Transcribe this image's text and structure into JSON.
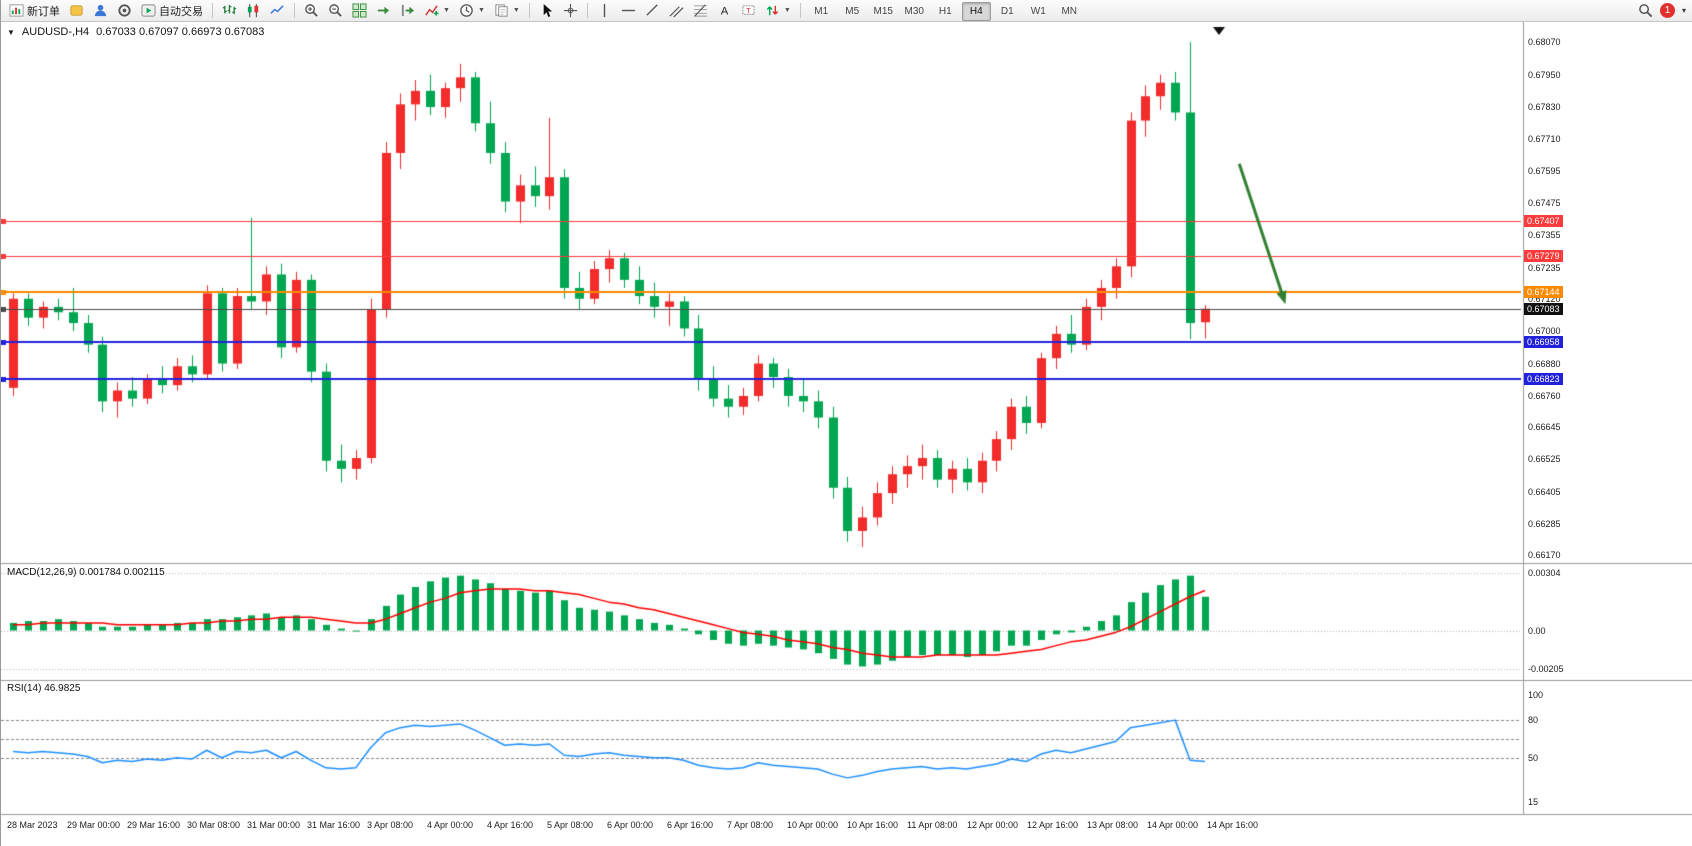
{
  "toolbar": {
    "new_order": "新订单",
    "auto_trading": "自动交易",
    "timeframes": [
      "M1",
      "M5",
      "M15",
      "M30",
      "H1",
      "H4",
      "D1",
      "W1",
      "MN"
    ],
    "active_timeframe": "H4",
    "notification_count": "1"
  },
  "chart_header": {
    "symbol": "AUDUSD-,H4",
    "ohlc": "0.67033 0.67097 0.66973 0.67083"
  },
  "indicators": {
    "macd_label": "MACD(12,26,9)",
    "macd_values": "0.001784 0.002115",
    "rsi_label": "RSI(14)",
    "rsi_value": "46.9825"
  },
  "chart_data": [
    {
      "type": "candlestick",
      "title": "AUDUSD-,H4",
      "symbol": "AUDUSD-",
      "timeframe": "H4",
      "ohlc_header": {
        "open": "0.67033",
        "high": "0.67097",
        "low": "0.66973",
        "close": "0.67083"
      },
      "bull_color": "#f22b2b",
      "bear_color": "#00a651",
      "ylim": [
        0.66145,
        0.68145
      ],
      "y_ticks": [
        0.6807,
        0.6795,
        0.6783,
        0.6771,
        0.67595,
        0.67475,
        0.67355,
        0.67235,
        0.6712,
        0.67,
        0.6688,
        0.6676,
        0.66645,
        0.66525,
        0.66405,
        0.66285,
        0.6617
      ],
      "x_labels": [
        "28 Mar 2023",
        "29 Mar 00:00",
        "29 Mar 16:00",
        "30 Mar 08:00",
        "31 Mar 00:00",
        "31 Mar 16:00",
        "3 Apr 08:00",
        "4 Apr 00:00",
        "4 Apr 16:00",
        "5 Apr 08:00",
        "6 Apr 00:00",
        "6 Apr 16:00",
        "7 Apr 08:00",
        "10 Apr 00:00",
        "10 Apr 16:00",
        "11 Apr 08:00",
        "12 Apr 00:00",
        "12 Apr 16:00",
        "13 Apr 08:00",
        "14 Apr 00:00",
        "14 Apr 16:00"
      ],
      "candles": [
        [
          0.6679,
          0.6714,
          0.6676,
          0.6712
        ],
        [
          0.6712,
          0.6714,
          0.6702,
          0.6705
        ],
        [
          0.6705,
          0.6711,
          0.6701,
          0.6709
        ],
        [
          0.6709,
          0.6712,
          0.6704,
          0.6707
        ],
        [
          0.6707,
          0.6716,
          0.67,
          0.6703
        ],
        [
          0.6703,
          0.6706,
          0.6692,
          0.6695
        ],
        [
          0.6695,
          0.6698,
          0.667,
          0.6674
        ],
        [
          0.6674,
          0.6681,
          0.6668,
          0.6678
        ],
        [
          0.6678,
          0.6683,
          0.6672,
          0.6675
        ],
        [
          0.6675,
          0.6684,
          0.6673,
          0.6682
        ],
        [
          0.6682,
          0.6687,
          0.6677,
          0.668
        ],
        [
          0.668,
          0.669,
          0.6678,
          0.6687
        ],
        [
          0.6687,
          0.6691,
          0.6681,
          0.6684
        ],
        [
          0.6684,
          0.6717,
          0.6682,
          0.6714
        ],
        [
          0.6714,
          0.6716,
          0.6685,
          0.6688
        ],
        [
          0.6688,
          0.6716,
          0.6686,
          0.6713
        ],
        [
          0.6713,
          0.6742,
          0.6708,
          0.6711
        ],
        [
          0.6711,
          0.6724,
          0.6706,
          0.6721
        ],
        [
          0.6721,
          0.6725,
          0.669,
          0.6694
        ],
        [
          0.6694,
          0.6722,
          0.6692,
          0.6719
        ],
        [
          0.6719,
          0.6721,
          0.6681,
          0.6685
        ],
        [
          0.6685,
          0.6688,
          0.6648,
          0.6652
        ],
        [
          0.6652,
          0.6658,
          0.6644,
          0.6649
        ],
        [
          0.6649,
          0.6656,
          0.6645,
          0.6653
        ],
        [
          0.6653,
          0.6712,
          0.6651,
          0.6708
        ],
        [
          0.6708,
          0.677,
          0.6705,
          0.6766
        ],
        [
          0.6766,
          0.6788,
          0.676,
          0.6784
        ],
        [
          0.6784,
          0.6793,
          0.6778,
          0.6789
        ],
        [
          0.6789,
          0.6795,
          0.678,
          0.6783
        ],
        [
          0.6783,
          0.6792,
          0.6779,
          0.679
        ],
        [
          0.679,
          0.6799,
          0.6785,
          0.6794
        ],
        [
          0.6794,
          0.6796,
          0.6774,
          0.6777
        ],
        [
          0.6777,
          0.6785,
          0.6762,
          0.6766
        ],
        [
          0.6766,
          0.677,
          0.6744,
          0.6748
        ],
        [
          0.6748,
          0.6758,
          0.674,
          0.6754
        ],
        [
          0.6754,
          0.6761,
          0.6746,
          0.675
        ],
        [
          0.675,
          0.6779,
          0.6745,
          0.6757
        ],
        [
          0.6757,
          0.676,
          0.6712,
          0.6716
        ],
        [
          0.6716,
          0.6722,
          0.6708,
          0.6712
        ],
        [
          0.6712,
          0.6726,
          0.671,
          0.6723
        ],
        [
          0.6723,
          0.673,
          0.6718,
          0.6727
        ],
        [
          0.6727,
          0.6729,
          0.6716,
          0.6719
        ],
        [
          0.6719,
          0.6724,
          0.671,
          0.6713
        ],
        [
          0.6713,
          0.6718,
          0.6705,
          0.6709
        ],
        [
          0.6709,
          0.6714,
          0.6702,
          0.6711
        ],
        [
          0.6711,
          0.6713,
          0.6698,
          0.6701
        ],
        [
          0.6701,
          0.6706,
          0.6678,
          0.6682
        ],
        [
          0.6682,
          0.6687,
          0.6672,
          0.6675
        ],
        [
          0.6675,
          0.668,
          0.6668,
          0.6672
        ],
        [
          0.6672,
          0.6679,
          0.6669,
          0.6676
        ],
        [
          0.6676,
          0.6691,
          0.6674,
          0.6688
        ],
        [
          0.6688,
          0.669,
          0.6679,
          0.6683
        ],
        [
          0.6683,
          0.6686,
          0.6672,
          0.6676
        ],
        [
          0.6676,
          0.6682,
          0.667,
          0.6674
        ],
        [
          0.6674,
          0.6678,
          0.6664,
          0.6668
        ],
        [
          0.6668,
          0.6672,
          0.6638,
          0.6642
        ],
        [
          0.6642,
          0.6646,
          0.6622,
          0.6626
        ],
        [
          0.6626,
          0.6635,
          0.662,
          0.6631
        ],
        [
          0.6631,
          0.6644,
          0.6628,
          0.664
        ],
        [
          0.664,
          0.665,
          0.6636,
          0.6647
        ],
        [
          0.6647,
          0.6654,
          0.6642,
          0.665
        ],
        [
          0.665,
          0.6658,
          0.6645,
          0.6653
        ],
        [
          0.6653,
          0.6656,
          0.6642,
          0.6645
        ],
        [
          0.6645,
          0.6652,
          0.664,
          0.6649
        ],
        [
          0.6649,
          0.6653,
          0.6641,
          0.6644
        ],
        [
          0.6644,
          0.6655,
          0.664,
          0.6652
        ],
        [
          0.6652,
          0.6663,
          0.6648,
          0.666
        ],
        [
          0.666,
          0.6675,
          0.6656,
          0.6672
        ],
        [
          0.6672,
          0.6676,
          0.6662,
          0.6666
        ],
        [
          0.6666,
          0.6692,
          0.6664,
          0.669
        ],
        [
          0.669,
          0.6702,
          0.6686,
          0.6699
        ],
        [
          0.6699,
          0.6706,
          0.6692,
          0.6695
        ],
        [
          0.6695,
          0.6712,
          0.6693,
          0.6709
        ],
        [
          0.6709,
          0.6719,
          0.6704,
          0.6716
        ],
        [
          0.6716,
          0.6727,
          0.6712,
          0.6724
        ],
        [
          0.6724,
          0.6781,
          0.672,
          0.6778
        ],
        [
          0.6778,
          0.6791,
          0.6772,
          0.6787
        ],
        [
          0.6787,
          0.6795,
          0.6782,
          0.6792
        ],
        [
          0.6792,
          0.6796,
          0.6778,
          0.6781
        ],
        [
          0.6781,
          0.6807,
          0.6697,
          0.6703
        ],
        [
          0.67033,
          0.67097,
          0.66973,
          0.67083
        ]
      ],
      "h_lines": [
        {
          "price": 0.67407,
          "color": "#ff3b3b",
          "width": 1
        },
        {
          "price": 0.67279,
          "color": "#ff3b3b",
          "width": 1
        },
        {
          "price": 0.67144,
          "color": "#ff8a00",
          "width": 2
        },
        {
          "price": 0.67083,
          "color": "#4a4a4a",
          "width": 1,
          "badge": "#111111"
        },
        {
          "price": 0.66958,
          "color": "#2222dd",
          "width": 2
        },
        {
          "price": 0.66823,
          "color": "#2222dd",
          "width": 2
        }
      ],
      "annotation_arrow": {
        "from_index": 82.3,
        "from_price": 0.6762,
        "to_index": 85.4,
        "to_price": 0.671,
        "color": "#338033"
      }
    },
    {
      "type": "bar",
      "name": "MACD",
      "params": "(12,26,9)",
      "main_value": "0.001784",
      "signal_value": "0.002115",
      "bar_color": "#00a651",
      "signal_color": "#ff0000",
      "ylim": [
        -0.0023,
        0.0032
      ],
      "y_ticks": [
        {
          "v": 0.00304,
          "label": "0.00304"
        },
        {
          "v": 0,
          "label": "0.00"
        },
        {
          "v": -0.00205,
          "label": "-0.00205"
        }
      ],
      "histogram": [
        0.0004,
        0.0005,
        0.0005,
        0.0006,
        0.0005,
        0.0004,
        0.0002,
        0.0002,
        0.0002,
        0.0003,
        0.0003,
        0.0004,
        0.0004,
        0.0006,
        0.0006,
        0.0007,
        0.0008,
        0.0009,
        0.0007,
        0.0008,
        0.0006,
        0.0003,
        0.0001,
        0.0,
        0.0006,
        0.0013,
        0.0019,
        0.0023,
        0.0026,
        0.0028,
        0.0029,
        0.0027,
        0.0025,
        0.0022,
        0.0021,
        0.002,
        0.0021,
        0.0016,
        0.0012,
        0.0011,
        0.001,
        0.0008,
        0.0006,
        0.0004,
        0.0003,
        0.0001,
        -0.0002,
        -0.0005,
        -0.0007,
        -0.0008,
        -0.0007,
        -0.0008,
        -0.0009,
        -0.001,
        -0.0012,
        -0.0015,
        -0.0018,
        -0.0019,
        -0.0018,
        -0.0016,
        -0.0014,
        -0.0013,
        -0.0013,
        -0.0013,
        -0.0014,
        -0.0013,
        -0.0011,
        -0.0008,
        -0.0008,
        -0.0005,
        -0.0002,
        -0.0001,
        0.0002,
        0.0005,
        0.0008,
        0.0015,
        0.002,
        0.0024,
        0.0027,
        0.0029,
        0.001784
      ],
      "signal": [
        0.0003,
        0.0003,
        0.0004,
        0.0004,
        0.0004,
        0.0004,
        0.0004,
        0.0003,
        0.0003,
        0.0003,
        0.0003,
        0.0003,
        0.0004,
        0.0004,
        0.0005,
        0.0005,
        0.0006,
        0.0006,
        0.0007,
        0.0007,
        0.0007,
        0.0006,
        0.0005,
        0.0004,
        0.0004,
        0.0006,
        0.0009,
        0.0012,
        0.0015,
        0.0017,
        0.002,
        0.0021,
        0.0022,
        0.0022,
        0.0022,
        0.0021,
        0.0021,
        0.002,
        0.0019,
        0.0017,
        0.0015,
        0.0014,
        0.0012,
        0.0011,
        0.0009,
        0.0007,
        0.0005,
        0.0003,
        0.0001,
        -0.0001,
        -0.0002,
        -0.0003,
        -0.0005,
        -0.0006,
        -0.0007,
        -0.0009,
        -0.001,
        -0.0012,
        -0.0013,
        -0.0014,
        -0.0014,
        -0.0014,
        -0.0013,
        -0.0013,
        -0.0013,
        -0.0013,
        -0.0013,
        -0.0012,
        -0.0011,
        -0.001,
        -0.0008,
        -0.0006,
        -0.0005,
        -0.0003,
        -0.0001,
        0.0002,
        0.0006,
        0.001,
        0.0014,
        0.0018,
        0.002115
      ]
    },
    {
      "type": "line",
      "name": "RSI",
      "params": "(14)",
      "value": "46.9825",
      "line_color": "#1e90ff",
      "ylim": [
        10,
        104
      ],
      "y_ticks": [
        {
          "v": 100,
          "label": "100"
        },
        {
          "v": 80,
          "label": "80"
        },
        {
          "v": 50,
          "label": "50"
        },
        {
          "v": 15,
          "label": "15"
        }
      ],
      "levels": [
        80,
        65,
        50
      ],
      "values": [
        55,
        54,
        55,
        54,
        53,
        51,
        46,
        48,
        47,
        49,
        48,
        50,
        49,
        56,
        50,
        55,
        54,
        56,
        50,
        55,
        48,
        42,
        41,
        42,
        58,
        70,
        74,
        76,
        75,
        76,
        77,
        72,
        66,
        60,
        61,
        60,
        61,
        52,
        51,
        53,
        54,
        52,
        51,
        50,
        50,
        48,
        44,
        42,
        41,
        42,
        46,
        44,
        43,
        42,
        41,
        37,
        34,
        36,
        39,
        41,
        42,
        43,
        41,
        42,
        41,
        43,
        45,
        49,
        47,
        53,
        56,
        54,
        57,
        60,
        63,
        74,
        76,
        78,
        80,
        48,
        46.9825
      ]
    }
  ]
}
